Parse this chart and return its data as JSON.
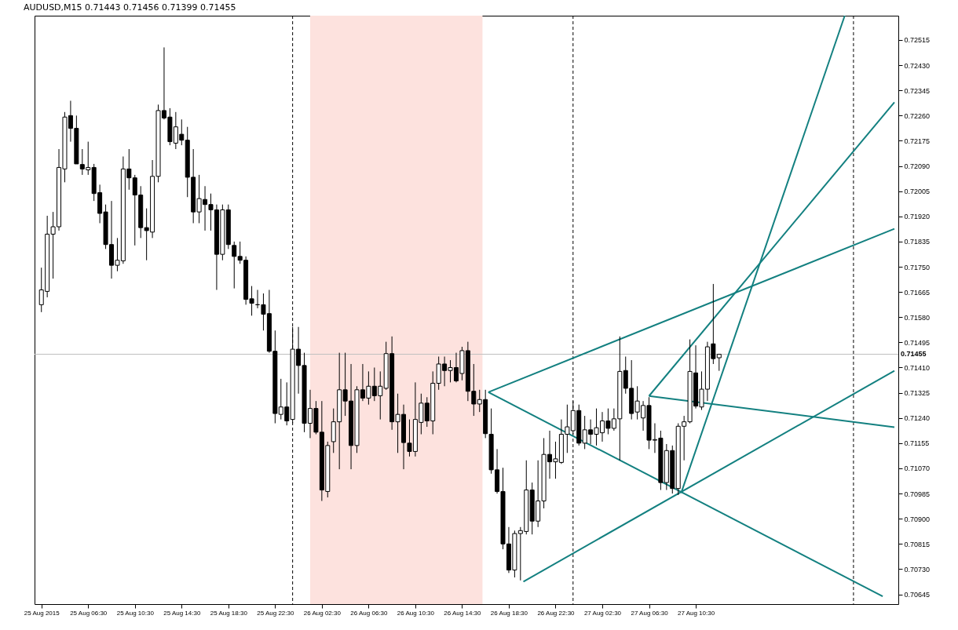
{
  "chart_data": {
    "type": "candlestick",
    "title": "AUDUSD,M15  0.71443 0.71456 0.71399 0.71455",
    "x": [
      "2015-08-25T02:30",
      "2015-08-25T03:00",
      "2015-08-25T03:30",
      "2015-08-25T04:00",
      "2015-08-25T04:30",
      "2015-08-25T05:00",
      "2015-08-25T05:30",
      "2015-08-25T06:00",
      "2015-08-25T06:30",
      "2015-08-25T07:00",
      "2015-08-25T07:30",
      "2015-08-25T08:00",
      "2015-08-25T08:30",
      "2015-08-25T09:00",
      "2015-08-25T09:30",
      "2015-08-25T10:00",
      "2015-08-25T10:30",
      "2015-08-25T11:00",
      "2015-08-25T11:30",
      "2015-08-25T12:00",
      "2015-08-25T12:30",
      "2015-08-25T13:00",
      "2015-08-25T13:30",
      "2015-08-25T14:00",
      "2015-08-25T14:30",
      "2015-08-25T15:00",
      "2015-08-25T15:30",
      "2015-08-25T16:00",
      "2015-08-25T16:30",
      "2015-08-25T17:00",
      "2015-08-25T17:30",
      "2015-08-25T18:00",
      "2015-08-25T18:30",
      "2015-08-25T19:00",
      "2015-08-25T19:30",
      "2015-08-25T20:00",
      "2015-08-25T20:30",
      "2015-08-25T21:00",
      "2015-08-25T21:30",
      "2015-08-25T22:00",
      "2015-08-25T22:30",
      "2015-08-25T23:00",
      "2015-08-25T23:30",
      "2015-08-26T00:00",
      "2015-08-26T00:30",
      "2015-08-26T01:00",
      "2015-08-26T01:30",
      "2015-08-26T02:00",
      "2015-08-26T02:30",
      "2015-08-26T03:00",
      "2015-08-26T03:30",
      "2015-08-26T04:00",
      "2015-08-26T04:30",
      "2015-08-26T05:00",
      "2015-08-26T05:30",
      "2015-08-26T06:00",
      "2015-08-26T06:30",
      "2015-08-26T07:00",
      "2015-08-26T07:30",
      "2015-08-26T08:00",
      "2015-08-26T08:30",
      "2015-08-26T09:00",
      "2015-08-26T09:30",
      "2015-08-26T10:00",
      "2015-08-26T10:30",
      "2015-08-26T11:00",
      "2015-08-26T11:30",
      "2015-08-26T12:00",
      "2015-08-26T12:30",
      "2015-08-26T13:00",
      "2015-08-26T13:30",
      "2015-08-26T14:00",
      "2015-08-26T14:30",
      "2015-08-26T15:00",
      "2015-08-26T15:30",
      "2015-08-26T16:00",
      "2015-08-26T16:30",
      "2015-08-26T17:00",
      "2015-08-26T17:30",
      "2015-08-26T18:00",
      "2015-08-26T18:30",
      "2015-08-26T19:00",
      "2015-08-26T19:30",
      "2015-08-26T20:00",
      "2015-08-26T20:30",
      "2015-08-26T21:00",
      "2015-08-26T21:30",
      "2015-08-26T22:00",
      "2015-08-26T22:30",
      "2015-08-26T23:00",
      "2015-08-26T23:30",
      "2015-08-27T00:00",
      "2015-08-27T00:30",
      "2015-08-27T01:00",
      "2015-08-27T01:30",
      "2015-08-27T02:00",
      "2015-08-27T02:30",
      "2015-08-27T03:00",
      "2015-08-27T03:30",
      "2015-08-27T04:00",
      "2015-08-27T04:30",
      "2015-08-27T05:00",
      "2015-08-27T05:30",
      "2015-08-27T06:00",
      "2015-08-27T06:30",
      "2015-08-27T07:00",
      "2015-08-27T07:30",
      "2015-08-27T08:00",
      "2015-08-27T08:30",
      "2015-08-27T09:00",
      "2015-08-27T09:30",
      "2015-08-27T10:00",
      "2015-08-27T10:30",
      "2015-08-27T11:00",
      "2015-08-27T11:30",
      "2015-08-27T12:00",
      "2015-08-27T12:30"
    ],
    "ohlc": [
      [
        0.71622,
        0.71747,
        0.71597,
        0.71672
      ],
      [
        0.71667,
        0.71922,
        0.71647,
        0.7186
      ],
      [
        0.7186,
        0.71935,
        0.7171,
        0.71885
      ],
      [
        0.71885,
        0.72147,
        0.71872,
        0.72085
      ],
      [
        0.7208,
        0.72272,
        0.72035,
        0.72255
      ],
      [
        0.7226,
        0.7231,
        0.72172,
        0.72217
      ],
      [
        0.72217,
        0.7226,
        0.72097,
        0.72097
      ],
      [
        0.72095,
        0.72147,
        0.7206,
        0.7208
      ],
      [
        0.72077,
        0.72172,
        0.7206,
        0.72085
      ],
      [
        0.72085,
        0.72097,
        0.71972,
        0.71997
      ],
      [
        0.72,
        0.72027,
        0.71897,
        0.7193
      ],
      [
        0.71935,
        0.7196,
        0.7181,
        0.71825
      ],
      [
        0.71825,
        0.71972,
        0.7171,
        0.71755
      ],
      [
        0.71755,
        0.71847,
        0.71735,
        0.71772
      ],
      [
        0.7177,
        0.72122,
        0.7176,
        0.7208
      ],
      [
        0.7208,
        0.72147,
        0.7201,
        0.7205
      ],
      [
        0.7205,
        0.7206,
        0.71822,
        0.71992
      ],
      [
        0.71992,
        0.72022,
        0.71847,
        0.71882
      ],
      [
        0.71882,
        0.71947,
        0.71772,
        0.71872
      ],
      [
        0.71867,
        0.7211,
        0.71847,
        0.72055
      ],
      [
        0.72055,
        0.72297,
        0.72035,
        0.72277
      ],
      [
        0.72277,
        0.7249,
        0.72247,
        0.72252
      ],
      [
        0.72255,
        0.72285,
        0.7216,
        0.72172
      ],
      [
        0.72167,
        0.72272,
        0.72147,
        0.72222
      ],
      [
        0.72197,
        0.72247,
        0.7216,
        0.72177
      ],
      [
        0.72177,
        0.72222,
        0.71985,
        0.72052
      ],
      [
        0.72052,
        0.72147,
        0.71897,
        0.71935
      ],
      [
        0.71935,
        0.7206,
        0.71897,
        0.7198
      ],
      [
        0.71977,
        0.72022,
        0.71872,
        0.7196
      ],
      [
        0.7196,
        0.71997,
        0.71872,
        0.71942
      ],
      [
        0.71942,
        0.7196,
        0.71672,
        0.71792
      ],
      [
        0.71792,
        0.7196,
        0.71772,
        0.71942
      ],
      [
        0.71942,
        0.7196,
        0.7181,
        0.71825
      ],
      [
        0.71822,
        0.71835,
        0.71677,
        0.71785
      ],
      [
        0.71785,
        0.71835,
        0.7176,
        0.71772
      ],
      [
        0.71772,
        0.71785,
        0.71622,
        0.7164
      ],
      [
        0.71642,
        0.71685,
        0.71585,
        0.71627
      ],
      [
        0.71622,
        0.71672,
        0.7161,
        0.71622
      ],
      [
        0.71622,
        0.7166,
        0.71535,
        0.7159
      ],
      [
        0.71592,
        0.71672,
        0.7146,
        0.71465
      ],
      [
        0.71465,
        0.71535,
        0.71222,
        0.71255
      ],
      [
        0.71252,
        0.71372,
        0.71235,
        0.71277
      ],
      [
        0.71277,
        0.7136,
        0.71215,
        0.7123
      ],
      [
        0.71235,
        0.71547,
        0.71222,
        0.71472
      ],
      [
        0.71472,
        0.71547,
        0.71322,
        0.71417
      ],
      [
        0.71417,
        0.7146,
        0.71192,
        0.71222
      ],
      [
        0.71222,
        0.71335,
        0.71172,
        0.71272
      ],
      [
        0.71272,
        0.71297,
        0.71185,
        0.71192
      ],
      [
        0.71192,
        0.71297,
        0.7096,
        0.70997
      ],
      [
        0.70992,
        0.7116,
        0.70972,
        0.71147
      ],
      [
        0.7116,
        0.71272,
        0.71122,
        0.71227
      ],
      [
        0.71227,
        0.7146,
        0.71067,
        0.71335
      ],
      [
        0.71335,
        0.7146,
        0.71247,
        0.71297
      ],
      [
        0.71297,
        0.71422,
        0.71067,
        0.71147
      ],
      [
        0.71147,
        0.71347,
        0.71122,
        0.71335
      ],
      [
        0.71335,
        0.71422,
        0.71297,
        0.71307
      ],
      [
        0.71307,
        0.71397,
        0.71285,
        0.71347
      ],
      [
        0.71347,
        0.7141,
        0.71297,
        0.71315
      ],
      [
        0.71315,
        0.71397,
        0.71235,
        0.71347
      ],
      [
        0.7134,
        0.71497,
        0.71335,
        0.71457
      ],
      [
        0.71457,
        0.71515,
        0.712,
        0.71227
      ],
      [
        0.71227,
        0.71322,
        0.71122,
        0.71252
      ],
      [
        0.71252,
        0.71285,
        0.71067,
        0.71157
      ],
      [
        0.71155,
        0.71235,
        0.7111,
        0.71127
      ],
      [
        0.71127,
        0.7136,
        0.7111,
        0.71235
      ],
      [
        0.71225,
        0.71322,
        0.71185,
        0.7129
      ],
      [
        0.7129,
        0.7131,
        0.7121,
        0.7123
      ],
      [
        0.7123,
        0.71397,
        0.71185,
        0.71357
      ],
      [
        0.71357,
        0.71447,
        0.71335,
        0.71422
      ],
      [
        0.71422,
        0.71447,
        0.71347,
        0.714
      ],
      [
        0.714,
        0.71435,
        0.7136,
        0.7141
      ],
      [
        0.7141,
        0.7146,
        0.7136,
        0.71365
      ],
      [
        0.7139,
        0.7148,
        0.71367,
        0.71467
      ],
      [
        0.71467,
        0.71497,
        0.71297,
        0.7133
      ],
      [
        0.7133,
        0.71422,
        0.71247,
        0.71287
      ],
      [
        0.71287,
        0.71335,
        0.7126,
        0.71302
      ],
      [
        0.71302,
        0.71335,
        0.71172,
        0.71187
      ],
      [
        0.71185,
        0.71272,
        0.71052,
        0.71065
      ],
      [
        0.71065,
        0.71135,
        0.70985,
        0.70992
      ],
      [
        0.70992,
        0.71072,
        0.70797,
        0.70815
      ],
      [
        0.70815,
        0.70872,
        0.70717,
        0.70727
      ],
      [
        0.70727,
        0.7086,
        0.70702,
        0.7085
      ],
      [
        0.7085,
        0.70872,
        0.70692,
        0.7086
      ],
      [
        0.70857,
        0.71097,
        0.70847,
        0.70997
      ],
      [
        0.70997,
        0.71022,
        0.70847,
        0.70892
      ],
      [
        0.70892,
        0.71097,
        0.70872,
        0.7096
      ],
      [
        0.7096,
        0.71172,
        0.70935,
        0.71117
      ],
      [
        0.71117,
        0.71197,
        0.71035,
        0.71092
      ],
      [
        0.71092,
        0.7116,
        0.71035,
        0.71102
      ],
      [
        0.7109,
        0.71235,
        0.71085,
        0.71185
      ],
      [
        0.71185,
        0.71285,
        0.71122,
        0.7121
      ],
      [
        0.71197,
        0.71297,
        0.71185,
        0.71265
      ],
      [
        0.71265,
        0.71285,
        0.71147,
        0.71155
      ],
      [
        0.71155,
        0.71247,
        0.71135,
        0.712
      ],
      [
        0.712,
        0.71235,
        0.71152,
        0.71185
      ],
      [
        0.71185,
        0.71272,
        0.71147,
        0.71207
      ],
      [
        0.7119,
        0.7126,
        0.7116,
        0.7123
      ],
      [
        0.7123,
        0.71272,
        0.71185,
        0.71205
      ],
      [
        0.71205,
        0.71272,
        0.71197,
        0.71237
      ],
      [
        0.71237,
        0.71515,
        0.71097,
        0.71397
      ],
      [
        0.714,
        0.71447,
        0.71322,
        0.7134
      ],
      [
        0.7134,
        0.71435,
        0.71235,
        0.71255
      ],
      [
        0.7126,
        0.71347,
        0.71235,
        0.71297
      ],
      [
        0.7124,
        0.71297,
        0.71197,
        0.71282
      ],
      [
        0.71282,
        0.7131,
        0.71135,
        0.71165
      ],
      [
        0.71165,
        0.71222,
        0.71122,
        0.71167
      ],
      [
        0.71172,
        0.71197,
        0.70997,
        0.71022
      ],
      [
        0.71022,
        0.71152,
        0.70997,
        0.7113
      ],
      [
        0.7113,
        0.71147,
        0.70985,
        0.71002
      ],
      [
        0.71002,
        0.71222,
        0.7098,
        0.71212
      ],
      [
        0.71212,
        0.71247,
        0.71097,
        0.71227
      ],
      [
        0.71227,
        0.71505,
        0.71222,
        0.71397
      ],
      [
        0.71392,
        0.71485,
        0.71272,
        0.7128
      ],
      [
        0.71277,
        0.71397,
        0.71267,
        0.71337
      ],
      [
        0.71337,
        0.71497,
        0.71297,
        0.7148
      ],
      [
        0.7149,
        0.71692,
        0.71422,
        0.7144
      ],
      [
        0.71443,
        0.71456,
        0.71399,
        0.71455
      ]
    ],
    "series": [
      {
        "type": "line",
        "color": "#138080",
        "x": [
          "2015-08-26T16:45",
          "2015-08-28T03:30"
        ],
        "values": [
          0.71327,
          0.71878
        ]
      },
      {
        "type": "line",
        "color": "#138080",
        "x": [
          "2015-08-26T16:45",
          "2015-08-28T02:30"
        ],
        "values": [
          0.71327,
          0.70638
        ]
      },
      {
        "type": "line",
        "color": "#138080",
        "x": [
          "2015-08-26T19:45",
          "2015-08-28T03:30"
        ],
        "values": [
          0.70688,
          0.71399
        ]
      },
      {
        "type": "line",
        "color": "#138080",
        "x": [
          "2015-08-27T09:15",
          "2015-08-27T23:15"
        ],
        "values": [
          0.70987,
          0.72597
        ]
      },
      {
        "type": "line",
        "color": "#138080",
        "x": [
          "2015-08-27T06:30",
          "2015-08-28T03:30"
        ],
        "values": [
          0.71314,
          0.72305
        ]
      },
      {
        "type": "line",
        "color": "#138080",
        "x": [
          "2015-08-27T06:30",
          "2015-08-28T03:30"
        ],
        "values": [
          0.71314,
          0.71209
        ]
      }
    ],
    "bands": [
      {
        "axis": "x",
        "from": "2015-08-26T01:30",
        "to": "2015-08-26T16:15",
        "color": "#fde2de"
      }
    ],
    "ref_lines": [
      {
        "axis": "y",
        "value": 0.71455,
        "label": "0.71455",
        "color": "#c0c0c0",
        "line_style": "solid"
      },
      {
        "axis": "x",
        "value": "2015-08-26T00:00",
        "color": "#000000",
        "line_style": "dashed"
      },
      {
        "axis": "x",
        "value": "2015-08-27T00:00",
        "color": "#000000",
        "line_style": "dashed"
      },
      {
        "axis": "x",
        "value": "2015-08-28T00:00",
        "color": "#000000",
        "line_style": "dashed"
      }
    ],
    "xlim": [
      "2015-08-25T02:15",
      "2015-08-28T03:30"
    ],
    "xticks": [
      {
        "value": "2015-08-25T02:30",
        "label": "25 Aug 2015"
      },
      {
        "value": "2015-08-25T06:30",
        "label": "25 Aug 06:30"
      },
      {
        "value": "2015-08-25T10:30",
        "label": "25 Aug 10:30"
      },
      {
        "value": "2015-08-25T14:30",
        "label": "25 Aug 14:30"
      },
      {
        "value": "2015-08-25T18:30",
        "label": "25 Aug 18:30"
      },
      {
        "value": "2015-08-25T22:30",
        "label": "25 Aug 22:30"
      },
      {
        "value": "2015-08-26T02:30",
        "label": "26 Aug 02:30"
      },
      {
        "value": "2015-08-26T06:30",
        "label": "26 Aug 06:30"
      },
      {
        "value": "2015-08-26T10:30",
        "label": "26 Aug 10:30"
      },
      {
        "value": "2015-08-26T14:30",
        "label": "26 Aug 14:30"
      },
      {
        "value": "2015-08-26T18:30",
        "label": "26 Aug 18:30"
      },
      {
        "value": "2015-08-26T22:30",
        "label": "26 Aug 22:30"
      },
      {
        "value": "2015-08-27T02:30",
        "label": "27 Aug 02:30"
      },
      {
        "value": "2015-08-27T06:30",
        "label": "27 Aug 06:30"
      },
      {
        "value": "2015-08-27T10:30",
        "label": "27 Aug 10:30"
      }
    ],
    "ylim": [
      0.70612,
      0.72597
    ],
    "yticks": [
      0.70645,
      {
        "value": 0.7073,
        "label": "0.70730"
      },
      0.70815,
      {
        "value": 0.709,
        "label": "0.70900"
      },
      0.70985,
      {
        "value": 0.7107,
        "label": "0.71070"
      },
      0.71155,
      {
        "value": 0.7124,
        "label": "0.71240"
      },
      0.71325,
      {
        "value": 0.7141,
        "label": "0.71410"
      },
      0.71495,
      {
        "value": 0.7158,
        "label": "0.71580"
      },
      0.71665,
      {
        "value": 0.7175,
        "label": "0.71750"
      },
      0.71835,
      {
        "value": 0.7192,
        "label": "0.71920"
      },
      0.72005,
      {
        "value": 0.7209,
        "label": "0.72090"
      },
      0.72175,
      {
        "value": 0.7226,
        "label": "0.72260"
      },
      0.72345,
      {
        "value": 0.7243,
        "label": "0.72430"
      },
      0.72515
    ],
    "grid": false
  }
}
